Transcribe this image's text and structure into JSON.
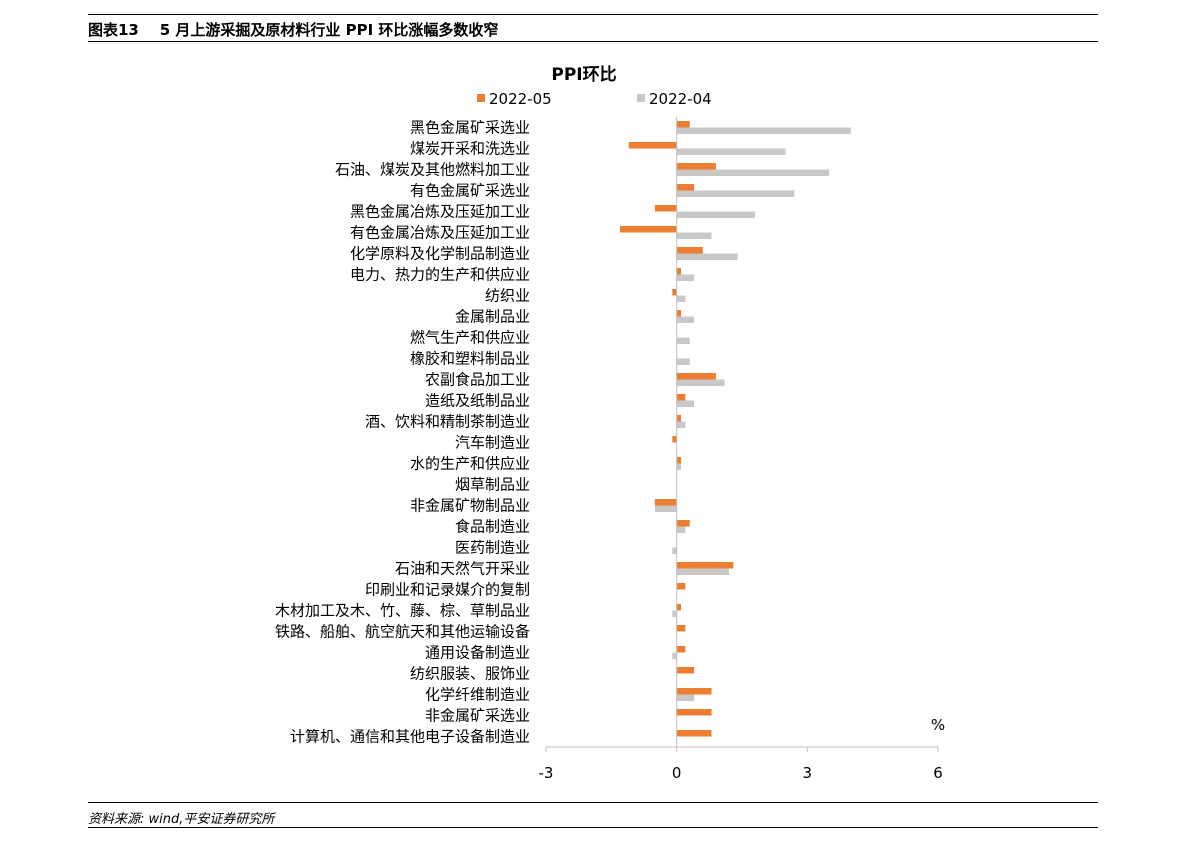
{
  "figure": {
    "title": "图表13    5 月上游采掘及原材料行业 PPI 环比涨幅多数收窄",
    "source": "资料来源: wind,平安证券研究所"
  },
  "colors": {
    "series_2022_05": "#ED7D31",
    "series_2022_04": "#C8C8C8",
    "axis": "#BFBFBF"
  },
  "chart_data": {
    "type": "bar",
    "orientation": "horizontal",
    "title": "PPI环比",
    "unit_label": "%",
    "xlim": [
      -3,
      6
    ],
    "x_ticks": [
      -3,
      0,
      3,
      6
    ],
    "legend_position": "top",
    "grid": false,
    "categories": [
      "黑色金属矿采选业",
      "煤炭开采和洗选业",
      "石油、煤炭及其他燃料加工业",
      "有色金属矿采选业",
      "黑色金属冶炼及压延加工业",
      "有色金属冶炼及压延加工业",
      "化学原料及化学制品制造业",
      "电力、热力的生产和供应业",
      "纺织业",
      "金属制品业",
      "燃气生产和供应业",
      "橡胶和塑料制品业",
      "农副食品加工业",
      "造纸及纸制品业",
      "酒、饮料和精制茶制造业",
      "汽车制造业",
      "水的生产和供应业",
      "烟草制品业",
      "非金属矿物制品业",
      "食品制造业",
      "医药制造业",
      "石油和天然气开采业",
      "印刷业和记录媒介的复制",
      "木材加工及木、竹、藤、棕、草制品业",
      "铁路、船舶、航空航天和其他运输设备",
      "通用设备制造业",
      "纺织服装、服饰业",
      "化学纤维制造业",
      "非金属矿采选业",
      "计算机、通信和其他电子设备制造业"
    ],
    "series": [
      {
        "name": "2022-05",
        "values": [
          0.3,
          -1.1,
          0.9,
          0.4,
          -0.5,
          -1.3,
          0.6,
          0.1,
          -0.1,
          0.1,
          0.0,
          0.0,
          0.9,
          0.2,
          0.1,
          -0.1,
          0.1,
          0.0,
          -0.5,
          0.3,
          0.0,
          1.3,
          0.2,
          0.1,
          0.2,
          0.2,
          0.4,
          0.8,
          0.8,
          0.8
        ]
      },
      {
        "name": "2022-04",
        "values": [
          4.0,
          2.5,
          3.5,
          2.7,
          1.8,
          0.8,
          1.4,
          0.4,
          0.2,
          0.4,
          0.3,
          0.3,
          1.1,
          0.4,
          0.2,
          0.0,
          0.1,
          0.0,
          -0.5,
          0.2,
          -0.1,
          1.2,
          0.0,
          -0.1,
          0.0,
          -0.1,
          0.0,
          0.4,
          0.0,
          0.0
        ]
      }
    ]
  }
}
